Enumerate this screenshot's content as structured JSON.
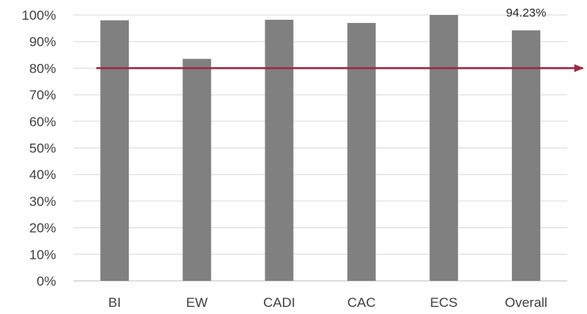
{
  "chart_data": {
    "type": "bar",
    "categories": [
      "BI",
      "EW",
      "CADI",
      "CAC",
      "ECS",
      "Overall"
    ],
    "values": [
      98,
      83.5,
      98.2,
      97,
      100,
      94.23
    ],
    "ylim": [
      0,
      100
    ],
    "yticks": [
      "0%",
      "10%",
      "20%",
      "30%",
      "40%",
      "50%",
      "60%",
      "70%",
      "80%",
      "90%",
      "100%"
    ],
    "data_labels": {
      "5": "94.23%"
    },
    "reference_line": {
      "value": 80,
      "color": "#9b2a45"
    },
    "bar_color": "#808080",
    "grid": true,
    "title": "",
    "xlabel": "",
    "ylabel": ""
  }
}
